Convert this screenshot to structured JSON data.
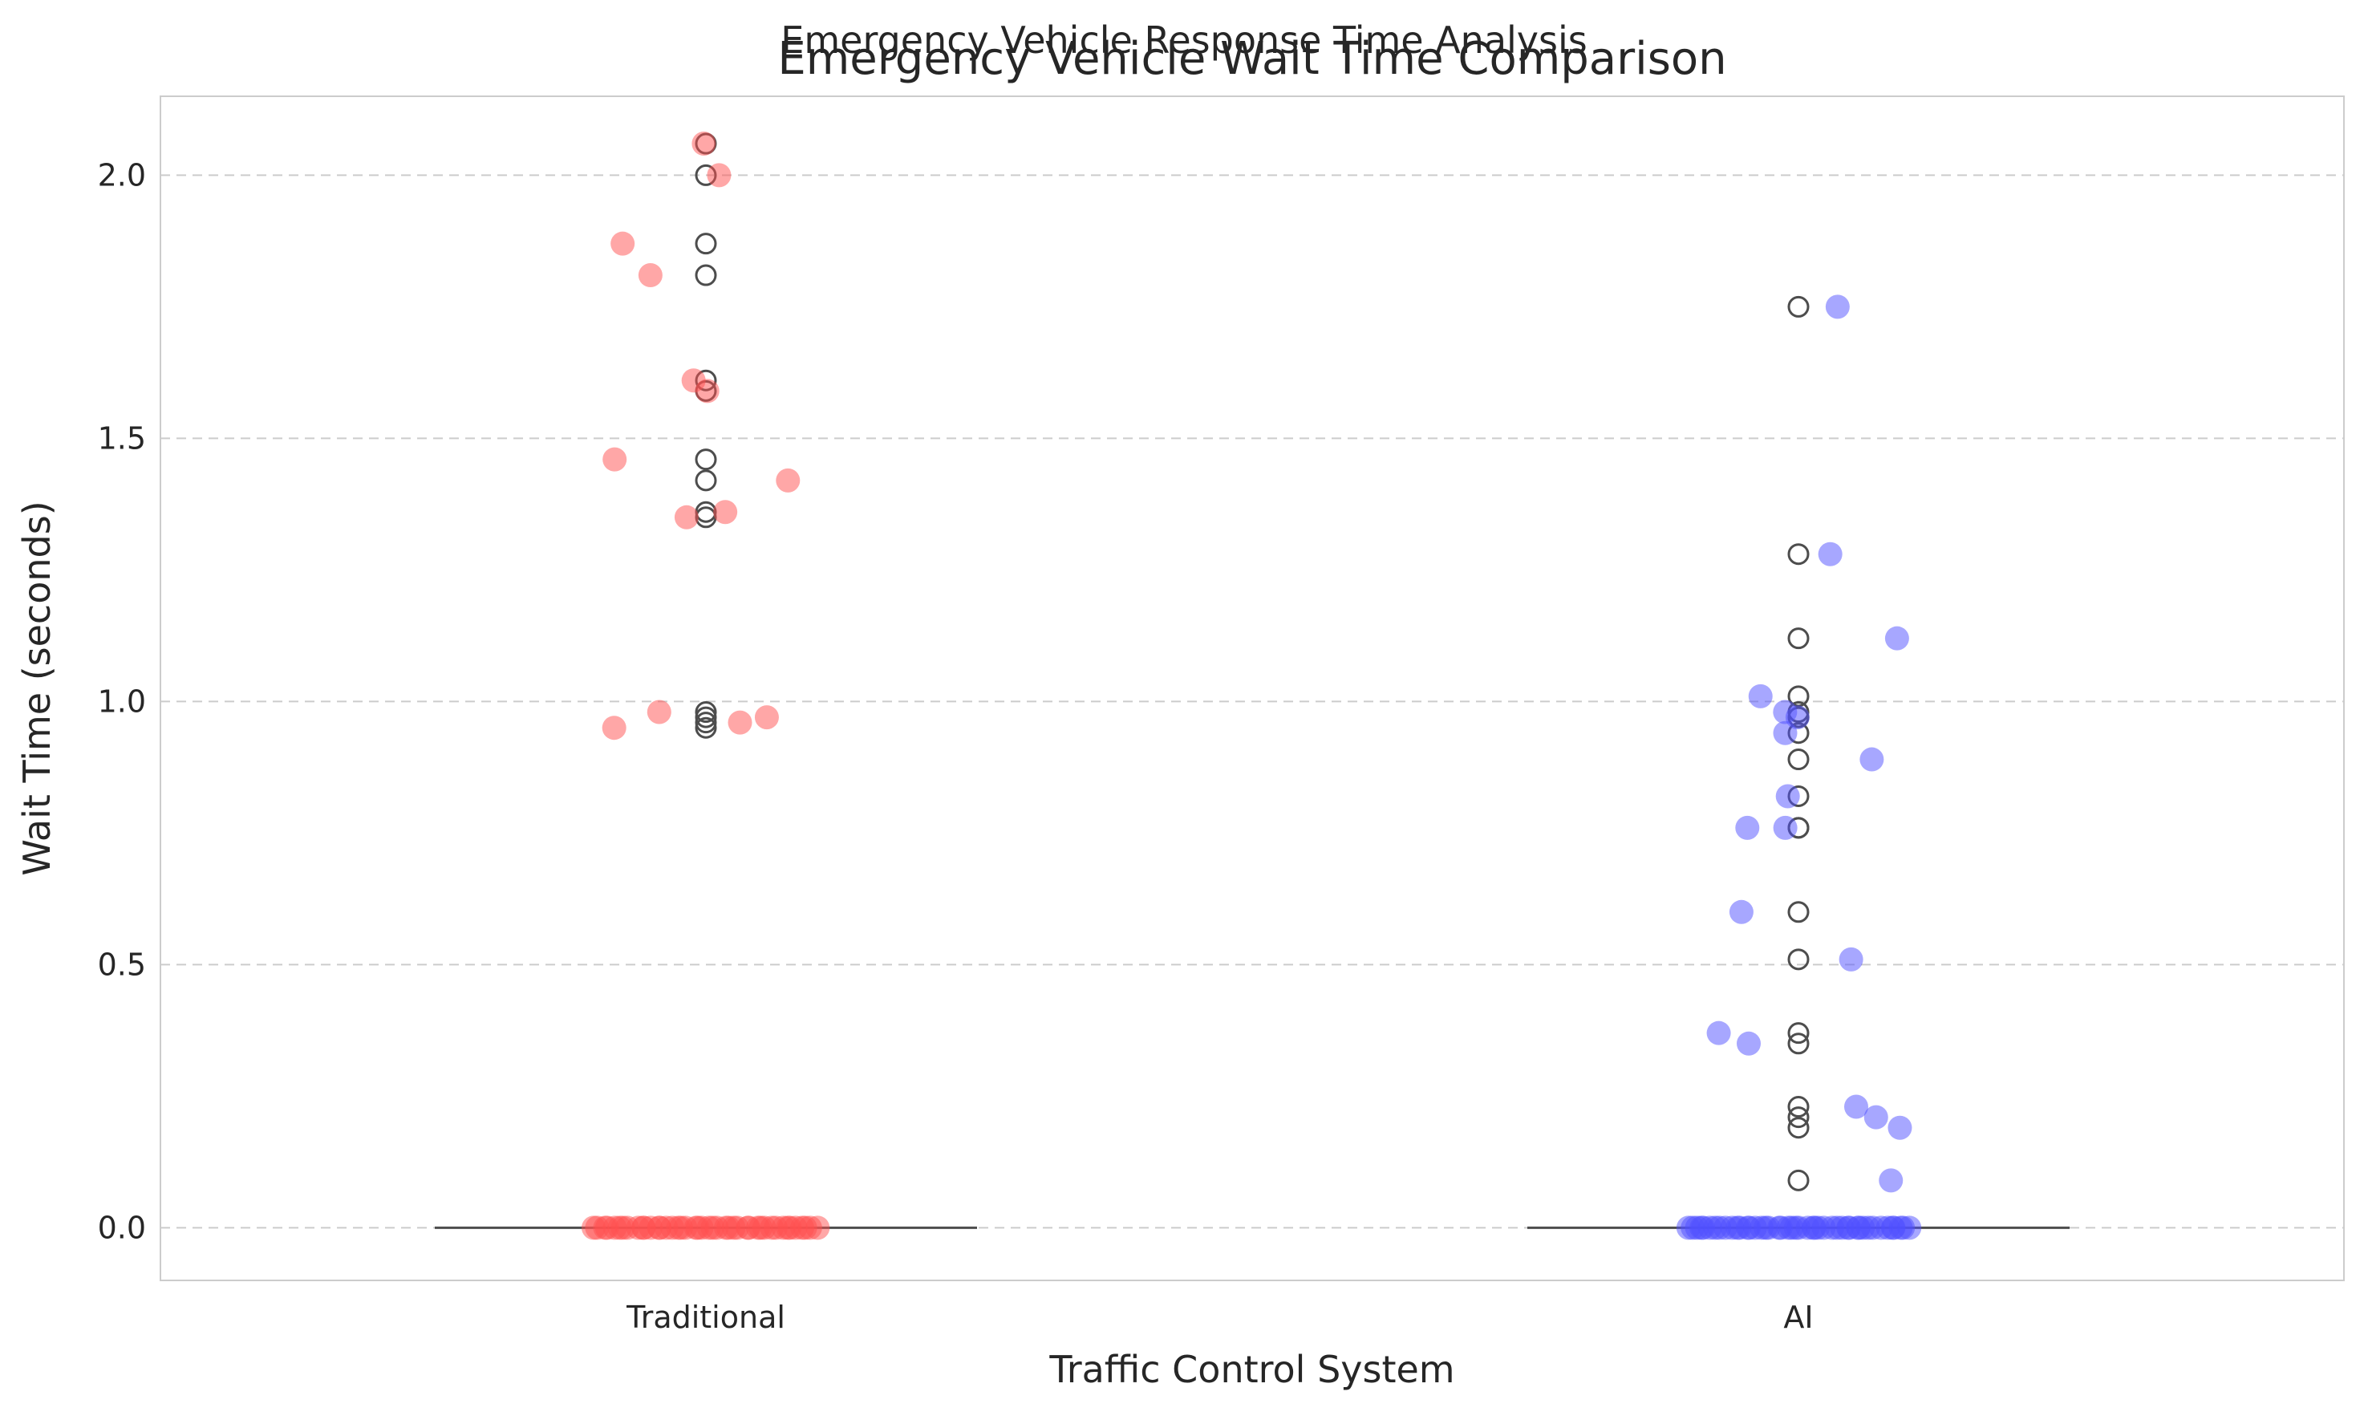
{
  "chart_data": {
    "type": "scatter",
    "suptitle": "Emergency Vehicle Response Time Analysis",
    "title": "Emergency Vehicle Wait Time Comparison",
    "xlabel": "Traffic Control System",
    "ylabel": "Wait Time (seconds)",
    "categories": [
      "Traditional",
      "AI"
    ],
    "ylim": [
      -0.1,
      2.15
    ],
    "yticks": [
      "0.0",
      "0.5",
      "1.0",
      "1.5",
      "2.0"
    ],
    "grid": "y-dashed",
    "series": [
      {
        "category": "Traditional",
        "color": "#ff5050",
        "zero_count": 44,
        "values": [
          2.06,
          2.0,
          1.87,
          1.81,
          1.61,
          1.59,
          1.46,
          1.42,
          1.36,
          1.35,
          0.98,
          0.97,
          0.96,
          0.95
        ]
      },
      {
        "category": "AI",
        "color": "#5050ff",
        "zero_count": 46,
        "values": [
          1.75,
          1.28,
          1.12,
          1.01,
          0.98,
          0.97,
          0.94,
          0.89,
          0.82,
          0.76,
          0.76,
          0.6,
          0.51,
          0.37,
          0.35,
          0.23,
          0.21,
          0.19,
          0.09
        ]
      }
    ],
    "outlier_color": "#4d4d4d",
    "median_line_color": "#4d4d4d"
  }
}
